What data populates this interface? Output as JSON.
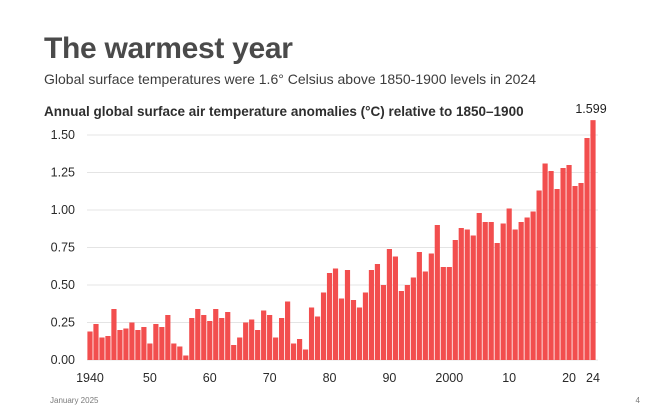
{
  "slide": {
    "title": "The warmest year",
    "subtitle": "Global surface temperatures were 1.6° Celsius above 1850-1900 levels in 2024",
    "footer_date": "January 2025",
    "page_number": "4"
  },
  "chart_data": {
    "type": "bar",
    "title": "Annual global surface air temperature anomalies (°C) relative to 1850–1900",
    "xlabel": "",
    "ylabel": "",
    "ylim": [
      0,
      1.6
    ],
    "grid": true,
    "bar_color": "#f24e4e",
    "y_ticks": [
      "0.00",
      "0.25",
      "0.50",
      "0.75",
      "1.00",
      "1.25",
      "1.50"
    ],
    "x_tick_labels": [
      {
        "year": 1940,
        "label": "1940"
      },
      {
        "year": 1950,
        "label": "50"
      },
      {
        "year": 1960,
        "label": "60"
      },
      {
        "year": 1970,
        "label": "70"
      },
      {
        "year": 1980,
        "label": "80"
      },
      {
        "year": 1990,
        "label": "90"
      },
      {
        "year": 2000,
        "label": "2000"
      },
      {
        "year": 2010,
        "label": "10"
      },
      {
        "year": 2020,
        "label": "20"
      },
      {
        "year": 2024,
        "label": "24"
      }
    ],
    "annotation": {
      "year": 2024,
      "label": "1.599"
    },
    "years": [
      1940,
      1941,
      1942,
      1943,
      1944,
      1945,
      1946,
      1947,
      1948,
      1949,
      1950,
      1951,
      1952,
      1953,
      1954,
      1955,
      1956,
      1957,
      1958,
      1959,
      1960,
      1961,
      1962,
      1963,
      1964,
      1965,
      1966,
      1967,
      1968,
      1969,
      1970,
      1971,
      1972,
      1973,
      1974,
      1975,
      1976,
      1977,
      1978,
      1979,
      1980,
      1981,
      1982,
      1983,
      1984,
      1985,
      1986,
      1987,
      1988,
      1989,
      1990,
      1991,
      1992,
      1993,
      1994,
      1995,
      1996,
      1997,
      1998,
      1999,
      2000,
      2001,
      2002,
      2003,
      2004,
      2005,
      2006,
      2007,
      2008,
      2009,
      2010,
      2011,
      2012,
      2013,
      2014,
      2015,
      2016,
      2017,
      2018,
      2019,
      2020,
      2021,
      2022,
      2023,
      2024
    ],
    "values": [
      0.19,
      0.24,
      0.15,
      0.16,
      0.34,
      0.2,
      0.21,
      0.25,
      0.2,
      0.22,
      0.11,
      0.24,
      0.22,
      0.3,
      0.11,
      0.09,
      0.03,
      0.28,
      0.34,
      0.3,
      0.26,
      0.34,
      0.28,
      0.32,
      0.1,
      0.15,
      0.25,
      0.27,
      0.2,
      0.33,
      0.3,
      0.15,
      0.28,
      0.39,
      0.11,
      0.14,
      0.07,
      0.35,
      0.29,
      0.45,
      0.58,
      0.61,
      0.41,
      0.6,
      0.4,
      0.35,
      0.45,
      0.6,
      0.64,
      0.5,
      0.74,
      0.69,
      0.46,
      0.5,
      0.55,
      0.72,
      0.59,
      0.71,
      0.9,
      0.62,
      0.62,
      0.8,
      0.88,
      0.87,
      0.83,
      0.98,
      0.92,
      0.92,
      0.78,
      0.91,
      1.01,
      0.87,
      0.92,
      0.95,
      0.99,
      1.13,
      1.31,
      1.26,
      1.14,
      1.28,
      1.3,
      1.16,
      1.18,
      1.48,
      1.599
    ]
  }
}
